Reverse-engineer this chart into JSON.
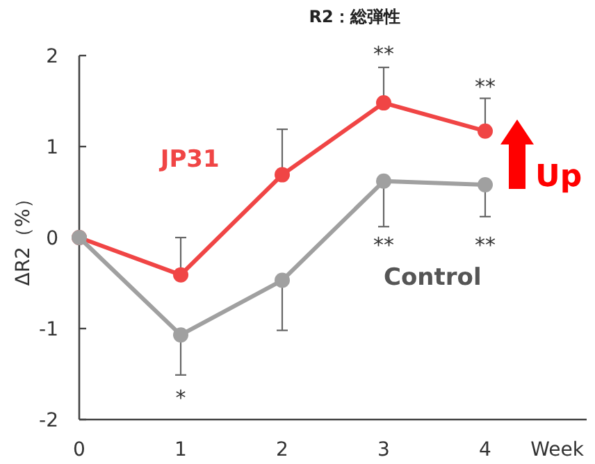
{
  "chart_data": {
    "type": "line",
    "title": "R2：総弾性",
    "xlabel": "Week",
    "ylabel": "ΔR2（%）",
    "x": [
      0,
      1,
      2,
      3,
      4
    ],
    "series": [
      {
        "name": "JP31",
        "color": "#f04545",
        "values": [
          0,
          -0.41,
          0.69,
          1.48,
          1.17
        ],
        "errors": [
          null,
          [
            -0.41,
            0.0
          ],
          [
            0.69,
            1.19
          ],
          [
            1.48,
            1.87
          ],
          [
            1.17,
            1.53
          ]
        ]
      },
      {
        "name": "Control",
        "color": "#a0a0a0",
        "values": [
          0,
          -1.07,
          -0.47,
          0.62,
          0.58
        ],
        "errors": [
          null,
          [
            -1.51,
            -1.07
          ],
          [
            -1.02,
            -0.47
          ],
          [
            0.12,
            0.62
          ],
          [
            0.23,
            0.58
          ]
        ]
      }
    ],
    "xlim": [
      0,
      5
    ],
    "xticks": [
      0,
      1,
      2,
      3,
      4
    ],
    "ylim": [
      -2,
      2
    ],
    "yticks": [
      -2,
      -1,
      0,
      1,
      2
    ],
    "marker": "circle",
    "grid": false,
    "annotations": [
      "**",
      "**",
      "**",
      "**",
      "*",
      "Up"
    ]
  }
}
